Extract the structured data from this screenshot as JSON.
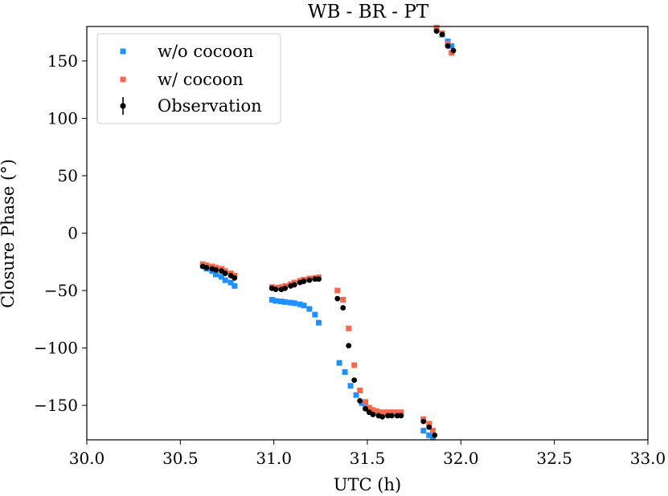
{
  "chart_data": {
    "type": "scatter",
    "title": "WB - BR - PT",
    "xlabel": "UTC (h)",
    "ylabel": "Closure Phase ($^\\circ$)",
    "ylabel_display": "Closure Phase (°)",
    "xlim": [
      30.0,
      33.0
    ],
    "ylim": [
      -180,
      180
    ],
    "xticks": [
      30.0,
      30.5,
      31.0,
      31.5,
      32.0,
      32.5,
      33.0
    ],
    "xtick_labels": [
      "30.0",
      "30.5",
      "31.0",
      "31.5",
      "32.0",
      "32.5",
      "33.0"
    ],
    "yticks": [
      150,
      100,
      50,
      0,
      -50,
      -100,
      -150
    ],
    "ytick_labels": [
      "150",
      "100",
      "50",
      "0",
      "−50",
      "−100",
      "−150"
    ],
    "legend_position": "top-left",
    "series": [
      {
        "name": "w/o cocoon",
        "marker": "square",
        "color": "#1e90ff",
        "points": [
          [
            30.62,
            -28
          ],
          [
            30.64,
            -31
          ],
          [
            30.67,
            -33
          ],
          [
            30.69,
            -36
          ],
          [
            30.72,
            -38
          ],
          [
            30.74,
            -41
          ],
          [
            30.77,
            -43
          ],
          [
            30.79,
            -46
          ],
          [
            30.99,
            -58
          ],
          [
            31.01,
            -59
          ],
          [
            31.04,
            -59.5
          ],
          [
            31.06,
            -60
          ],
          [
            31.09,
            -60.5
          ],
          [
            31.11,
            -61
          ],
          [
            31.14,
            -62
          ],
          [
            31.16,
            -63
          ],
          [
            31.19,
            -66
          ],
          [
            31.22,
            -71
          ],
          [
            31.24,
            -78
          ],
          [
            31.35,
            -113
          ],
          [
            31.38,
            -121
          ],
          [
            31.41,
            -133
          ],
          [
            31.44,
            -141
          ],
          [
            31.47,
            -148
          ],
          [
            31.49,
            -152
          ],
          [
            31.51,
            -154
          ],
          [
            31.53,
            -155
          ],
          [
            31.55,
            -156
          ],
          [
            31.58,
            -157
          ],
          [
            31.6,
            -157
          ],
          [
            31.63,
            -157
          ],
          [
            31.65,
            -157
          ],
          [
            31.68,
            -157
          ],
          [
            31.8,
            -172
          ],
          [
            31.83,
            -176
          ],
          [
            31.85,
            -178
          ],
          [
            31.87,
            179
          ],
          [
            31.9,
            173
          ],
          [
            31.93,
            167
          ],
          [
            31.95,
            163
          ]
        ]
      },
      {
        "name": "w/ cocoon",
        "marker": "square",
        "color": "#f4694e",
        "points": [
          [
            30.62,
            -27
          ],
          [
            30.64,
            -28
          ],
          [
            30.67,
            -29
          ],
          [
            30.69,
            -30
          ],
          [
            30.72,
            -31
          ],
          [
            30.74,
            -33
          ],
          [
            30.77,
            -35
          ],
          [
            30.79,
            -37
          ],
          [
            30.99,
            -47
          ],
          [
            31.01,
            -47.5
          ],
          [
            31.04,
            -47
          ],
          [
            31.06,
            -46
          ],
          [
            31.09,
            -44.5
          ],
          [
            31.11,
            -43
          ],
          [
            31.14,
            -41.5
          ],
          [
            31.16,
            -40.5
          ],
          [
            31.19,
            -39.5
          ],
          [
            31.22,
            -39
          ],
          [
            31.24,
            -38.5
          ],
          [
            31.34,
            -50
          ],
          [
            31.37,
            -58
          ],
          [
            31.4,
            -83
          ],
          [
            31.43,
            -115
          ],
          [
            31.46,
            -137
          ],
          [
            31.49,
            -147
          ],
          [
            31.51,
            -152
          ],
          [
            31.53,
            -154
          ],
          [
            31.55,
            -155
          ],
          [
            31.58,
            -156
          ],
          [
            31.6,
            -156
          ],
          [
            31.63,
            -156
          ],
          [
            31.65,
            -156
          ],
          [
            31.68,
            -156
          ],
          [
            31.8,
            -162
          ],
          [
            31.83,
            -166
          ],
          [
            31.85,
            -172
          ],
          [
            31.87,
            179
          ],
          [
            31.9,
            174
          ],
          [
            31.93,
            165
          ],
          [
            31.95,
            157
          ]
        ]
      },
      {
        "name": "Observation",
        "marker": "circle",
        "color": "#000000",
        "points": [
          [
            30.62,
            -29
          ],
          [
            30.64,
            -30
          ],
          [
            30.67,
            -31
          ],
          [
            30.69,
            -32
          ],
          [
            30.72,
            -33
          ],
          [
            30.74,
            -35
          ],
          [
            30.77,
            -37
          ],
          [
            30.79,
            -39
          ],
          [
            30.99,
            -48
          ],
          [
            31.01,
            -49
          ],
          [
            31.04,
            -49
          ],
          [
            31.06,
            -48
          ],
          [
            31.09,
            -46
          ],
          [
            31.11,
            -45
          ],
          [
            31.14,
            -43
          ],
          [
            31.16,
            -42
          ],
          [
            31.19,
            -41
          ],
          [
            31.22,
            -40
          ],
          [
            31.24,
            -40
          ],
          [
            31.34,
            -57
          ],
          [
            31.37,
            -65
          ],
          [
            31.4,
            -98
          ],
          [
            31.43,
            -128
          ],
          [
            31.46,
            -146
          ],
          [
            31.49,
            -153
          ],
          [
            31.51,
            -156
          ],
          [
            31.53,
            -158
          ],
          [
            31.56,
            -159
          ],
          [
            31.58,
            -160
          ],
          [
            31.61,
            -159
          ],
          [
            31.63,
            -159
          ],
          [
            31.66,
            -159
          ],
          [
            31.68,
            -159
          ],
          [
            31.8,
            -164
          ],
          [
            31.83,
            -169
          ],
          [
            31.86,
            -176
          ],
          [
            31.87,
            176
          ],
          [
            31.9,
            173
          ],
          [
            31.93,
            163
          ],
          [
            31.96,
            159
          ]
        ]
      }
    ]
  }
}
